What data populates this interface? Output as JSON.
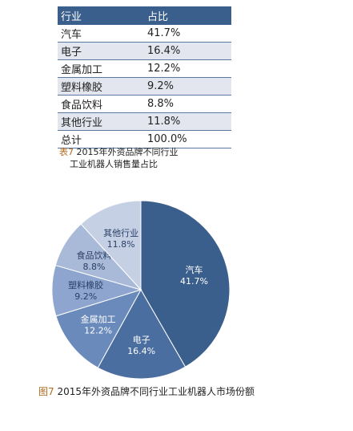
{
  "table": {
    "headers": [
      "行业",
      "占比"
    ],
    "rows": [
      [
        "汽车",
        "41.7%"
      ],
      [
        "电子",
        "16.4%"
      ],
      [
        "金属加工",
        "12.2%"
      ],
      [
        "塑料橡胶",
        "9.2%"
      ],
      [
        "食品饮料",
        "8.8%"
      ],
      [
        "其他行业",
        "11.8%"
      ],
      [
        "总计",
        "100.0%"
      ]
    ]
  },
  "table_caption": {
    "prefix": "表7",
    "line1": "2015年外资品牌不同行业",
    "line2": "工业机器人销售量占比"
  },
  "figure_caption": {
    "prefix": "图7",
    "text": "2015年外资品牌不同行业工业机器人市场份额"
  },
  "chart_data": {
    "type": "pie",
    "slices": [
      {
        "label": "汽车",
        "value": 41.7,
        "display": "41.7%",
        "color": "#3b5f8c"
      },
      {
        "label": "电子",
        "value": 16.4,
        "display": "16.4%",
        "color": "#4a6ea0"
      },
      {
        "label": "金属加工",
        "value": 12.2,
        "display": "12.2%",
        "color": "#6a8abb"
      },
      {
        "label": "塑料橡胶",
        "value": 9.2,
        "display": "9.2%",
        "color": "#8ea6cf"
      },
      {
        "label": "食品饮料",
        "value": 8.8,
        "display": "8.8%",
        "color": "#a9bad8"
      },
      {
        "label": "其他行业",
        "value": 11.8,
        "display": "11.8%",
        "color": "#c5d0e5"
      }
    ]
  }
}
